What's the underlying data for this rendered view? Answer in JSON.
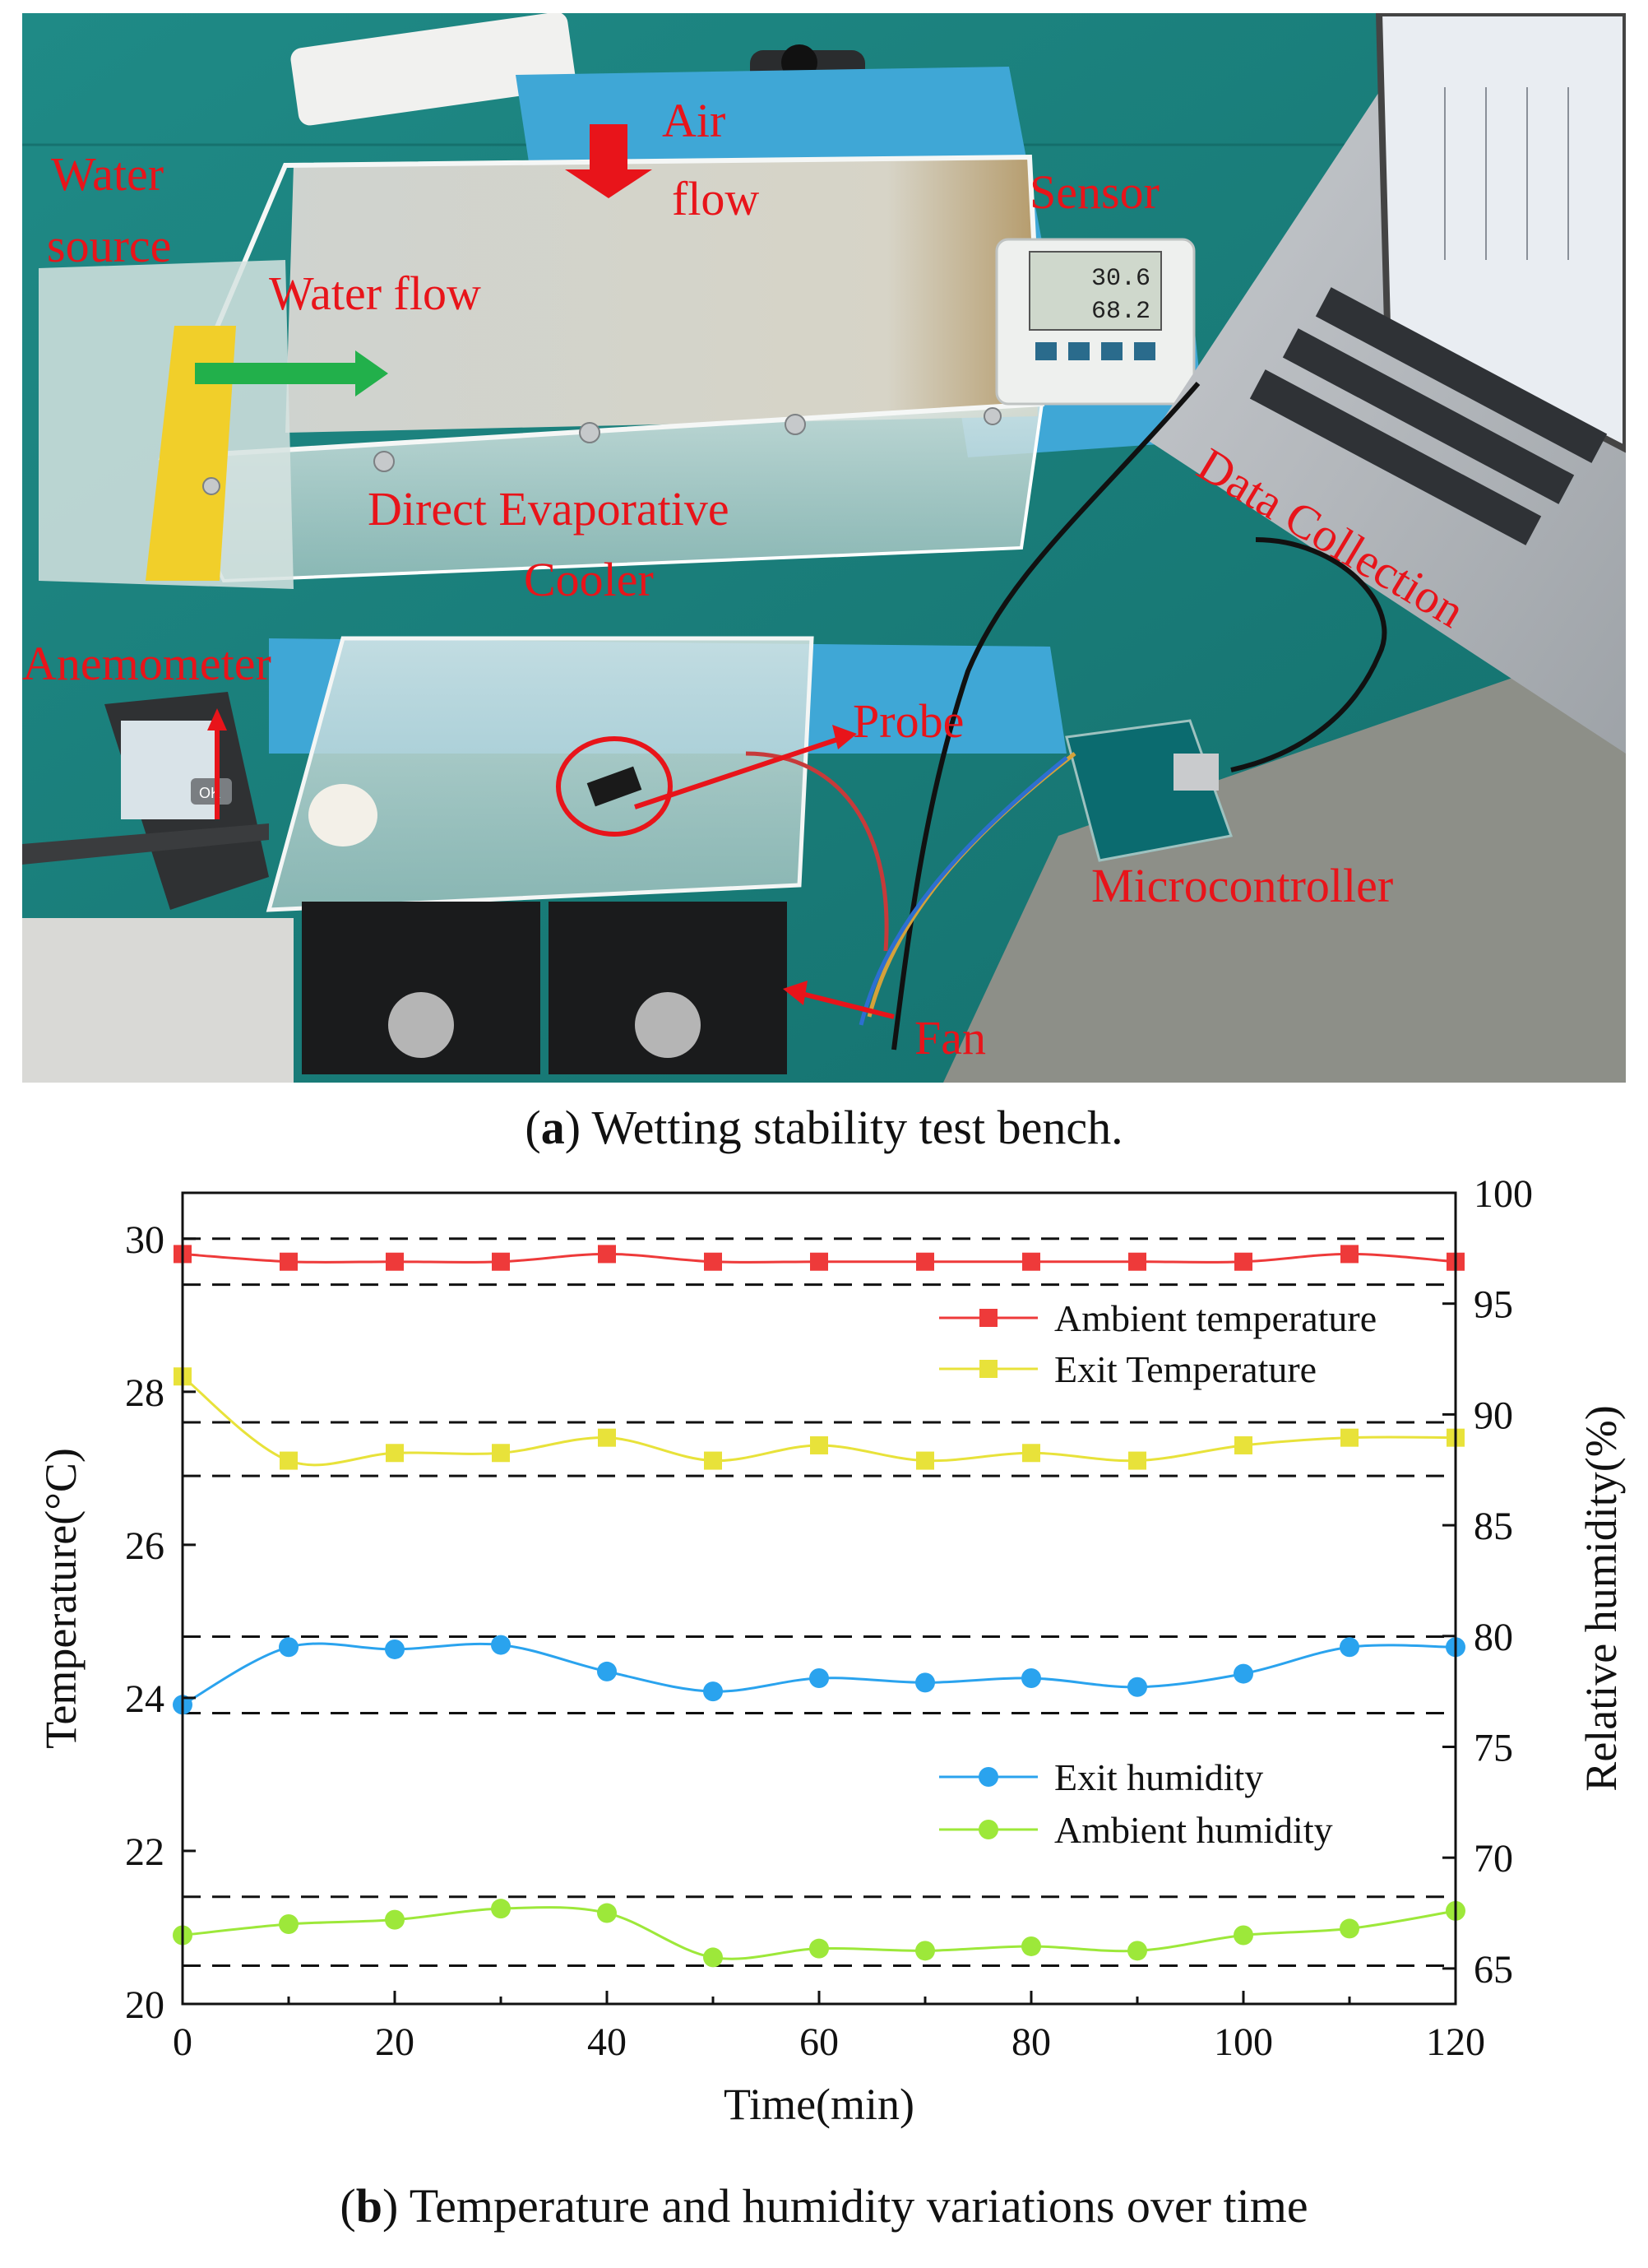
{
  "photo": {
    "labels": {
      "water_source": [
        "Water",
        "source"
      ],
      "air_flow": [
        "Air",
        "flow"
      ],
      "water_flow": "Water flow",
      "sensor": "Sensor",
      "sensor_display_1": "30.6",
      "sensor_display_2": "68.2",
      "cooler": [
        "Direct  Evaporative",
        "Cooler"
      ],
      "data_collection": "Data Collection",
      "anemometer": "Anemometer",
      "probe": "Probe",
      "microcontroller": "Microcontroller",
      "fan": "Fan",
      "meter_button": "OK"
    },
    "colors": {
      "label": "#e8141a",
      "water_flow_arrow": "#22b04b",
      "air_flow_arrow": "#e8141a"
    }
  },
  "caption_a": {
    "letter": "a",
    "text": " Wetting stability test bench."
  },
  "caption_b": {
    "letter": "b",
    "text": " Temperature and humidity variations over time"
  },
  "chart_data": {
    "type": "line",
    "xlabel": "Time(min)",
    "ylabel_left": "Temperature(°C)",
    "ylabel_right": "Relative humidity(%)",
    "xlim": [
      0,
      120
    ],
    "ylim_left": [
      20,
      30.6
    ],
    "ylim_right": [
      63.4,
      100
    ],
    "x_ticks": [
      0,
      20,
      40,
      60,
      80,
      100,
      120
    ],
    "y_ticks_left": [
      20,
      22,
      24,
      26,
      28,
      30
    ],
    "y_ticks_right": [
      65,
      70,
      75,
      80,
      85,
      90,
      95,
      100
    ],
    "x": [
      0,
      10,
      20,
      30,
      40,
      50,
      60,
      70,
      80,
      90,
      100,
      110,
      120
    ],
    "series": [
      {
        "name": "Ambient temperature",
        "axis": "left",
        "marker": "square",
        "color": "#ee3a3a",
        "values": [
          29.8,
          29.7,
          29.7,
          29.7,
          29.8,
          29.7,
          29.7,
          29.7,
          29.7,
          29.7,
          29.7,
          29.8,
          29.7
        ]
      },
      {
        "name": "Exit Temperature",
        "axis": "left",
        "marker": "square",
        "color": "#e8e23a",
        "values": [
          28.2,
          27.1,
          27.2,
          27.2,
          27.4,
          27.1,
          27.3,
          27.1,
          27.2,
          27.1,
          27.3,
          27.4,
          27.4
        ]
      },
      {
        "name": "Exit humidity",
        "axis": "right",
        "marker": "circle",
        "color": "#2aa3ee",
        "values": [
          76.9,
          79.5,
          79.4,
          79.6,
          78.4,
          77.5,
          78.1,
          77.9,
          78.1,
          77.7,
          78.3,
          79.5,
          79.5
        ]
      },
      {
        "name": "Ambient humidity",
        "axis": "right",
        "marker": "circle",
        "color": "#9de83a",
        "values": [
          66.5,
          67.0,
          67.2,
          67.7,
          67.5,
          65.5,
          65.9,
          65.8,
          66.0,
          65.8,
          66.5,
          66.8,
          67.6
        ]
      }
    ],
    "reference_lines_left": [
      29.4,
      30.0,
      26.9,
      27.6,
      23.8,
      24.8,
      20.5,
      21.4
    ],
    "legend_groups": [
      {
        "placement": "top-right",
        "series": [
          0,
          1
        ]
      },
      {
        "placement": "middle-right",
        "series": [
          2,
          3
        ]
      }
    ],
    "grid": false
  }
}
